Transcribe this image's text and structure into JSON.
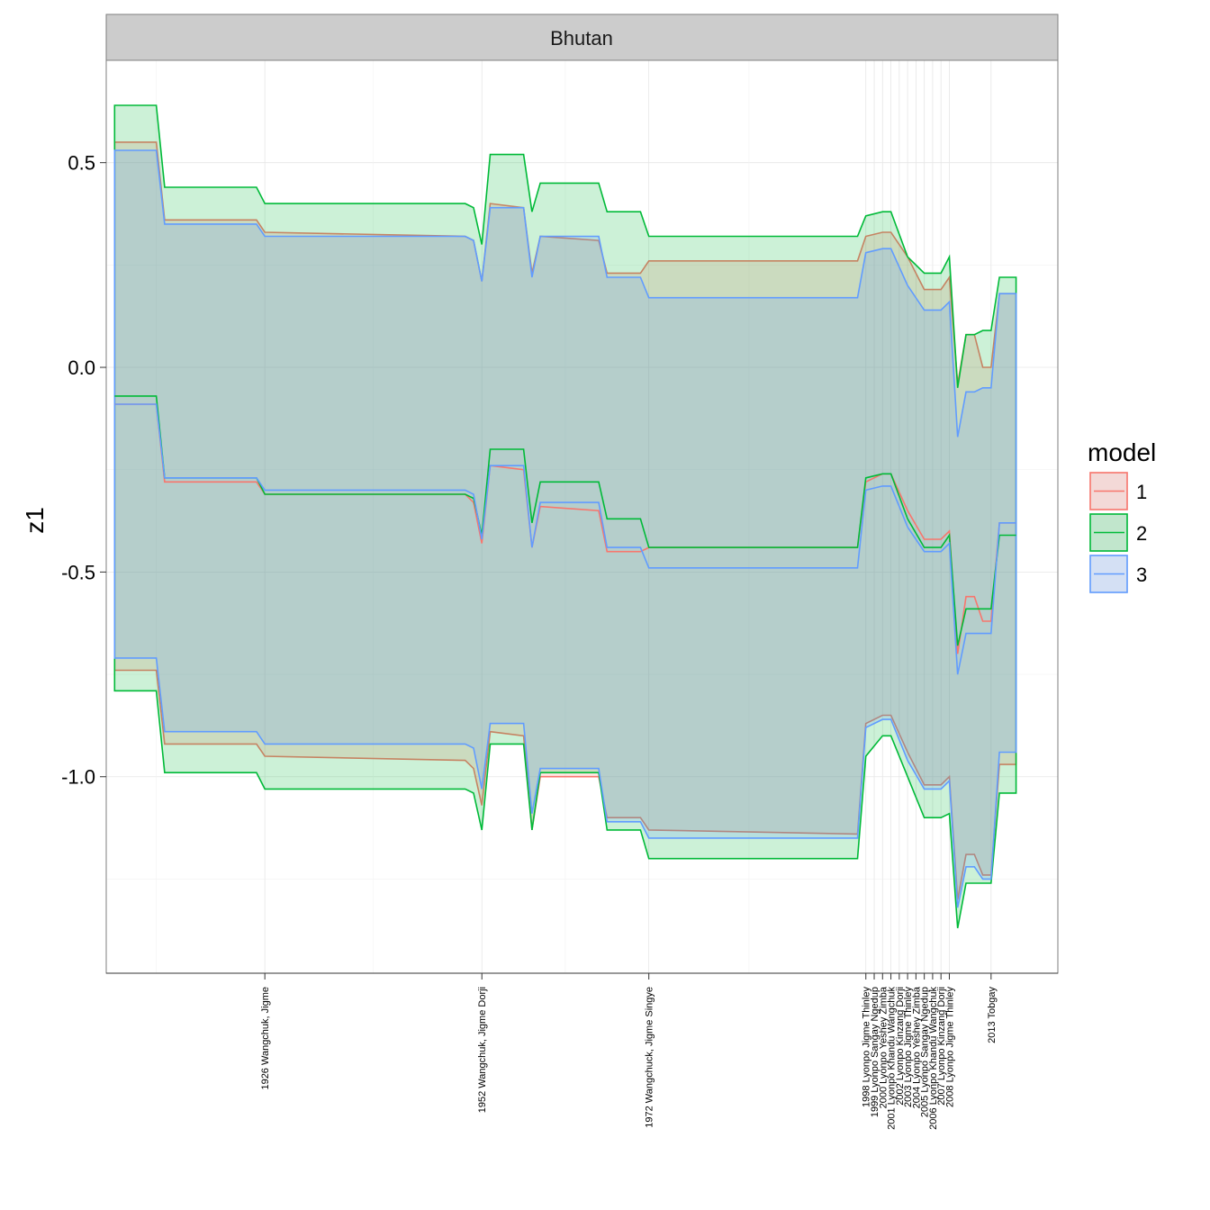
{
  "chart_data": {
    "type": "area",
    "facet_title": "Bhutan",
    "ylabel": "z1",
    "xlabel": "",
    "ylim": [
      -1.48,
      0.75
    ],
    "xlim": [
      1907,
      2021
    ],
    "yticks": [
      0.5,
      0.0,
      -0.5,
      -1.0
    ],
    "ytick_labels": [
      "0.5",
      "0.0",
      "-0.5",
      "-1.0"
    ],
    "xticks": [
      {
        "x": 1926,
        "label": "1926 Wangchuk, Jigme"
      },
      {
        "x": 1952,
        "label": "1952 Wangchuk, Jigme Dorji"
      },
      {
        "x": 1972,
        "label": "1972 Wangchuck, Jigme Singye"
      },
      {
        "x": 1998,
        "label": "1998 Lyonpo Jigme Thinley"
      },
      {
        "x": 1999,
        "label": "1999 Lyonpo Sangay Ngedup"
      },
      {
        "x": 2000,
        "label": "2000 Lyonpo Yeshey Zimba"
      },
      {
        "x": 2001,
        "label": "2001 Lyonpo Khandu Wangchuk"
      },
      {
        "x": 2002,
        "label": "2002 Lyonpo Kinzang Dorji"
      },
      {
        "x": 2003,
        "label": "2003 Lyonpo Jigme Thinley"
      },
      {
        "x": 2004,
        "label": "2004 Lyonpo Yeshey Zimba"
      },
      {
        "x": 2005,
        "label": "2005 Lyonpo Sangay Ngedup"
      },
      {
        "x": 2006,
        "label": "2006 Lyonpo Khandu Wangchuk"
      },
      {
        "x": 2007,
        "label": "2007 Lyonpo Kinzang Dorji"
      },
      {
        "x": 2008,
        "label": "2008 Lyonpo Jigme Thinley"
      },
      {
        "x": 2013,
        "label": "2013 Tobgay"
      }
    ],
    "legend": {
      "title": "model",
      "position": "right",
      "entries": [
        "1",
        "2",
        "3"
      ]
    },
    "grid": true,
    "series": [
      {
        "name": "1",
        "color": "#F8766D",
        "points": [
          {
            "x": 1908,
            "mean": -0.09,
            "lower": -0.74,
            "upper": 0.55
          },
          {
            "x": 1913,
            "mean": -0.09,
            "lower": -0.74,
            "upper": 0.55
          },
          {
            "x": 1914,
            "mean": -0.28,
            "lower": -0.92,
            "upper": 0.36
          },
          {
            "x": 1925,
            "mean": -0.28,
            "lower": -0.92,
            "upper": 0.36
          },
          {
            "x": 1926,
            "mean": -0.31,
            "lower": -0.95,
            "upper": 0.33
          },
          {
            "x": 1950,
            "mean": -0.31,
            "lower": -0.96,
            "upper": 0.32
          },
          {
            "x": 1951,
            "mean": -0.33,
            "lower": -0.98,
            "upper": 0.31
          },
          {
            "x": 1952,
            "mean": -0.43,
            "lower": -1.07,
            "upper": 0.21
          },
          {
            "x": 1953,
            "mean": -0.24,
            "lower": -0.89,
            "upper": 0.4
          },
          {
            "x": 1957,
            "mean": -0.25,
            "lower": -0.9,
            "upper": 0.39
          },
          {
            "x": 1958,
            "mean": -0.44,
            "lower": -1.13,
            "upper": 0.23
          },
          {
            "x": 1959,
            "mean": -0.34,
            "lower": -1.0,
            "upper": 0.32
          },
          {
            "x": 1966,
            "mean": -0.35,
            "lower": -1.0,
            "upper": 0.31
          },
          {
            "x": 1967,
            "mean": -0.45,
            "lower": -1.1,
            "upper": 0.23
          },
          {
            "x": 1971,
            "mean": -0.45,
            "lower": -1.1,
            "upper": 0.23
          },
          {
            "x": 1972,
            "mean": -0.44,
            "lower": -1.13,
            "upper": 0.26
          },
          {
            "x": 1997,
            "mean": -0.44,
            "lower": -1.14,
            "upper": 0.26
          },
          {
            "x": 1998,
            "mean": -0.28,
            "lower": -0.87,
            "upper": 0.32
          },
          {
            "x": 2000,
            "mean": -0.26,
            "lower": -0.85,
            "upper": 0.33
          },
          {
            "x": 2001,
            "mean": -0.26,
            "lower": -0.85,
            "upper": 0.33
          },
          {
            "x": 2003,
            "mean": -0.35,
            "lower": -0.94,
            "upper": 0.27
          },
          {
            "x": 2005,
            "mean": -0.42,
            "lower": -1.02,
            "upper": 0.19
          },
          {
            "x": 2007,
            "mean": -0.42,
            "lower": -1.02,
            "upper": 0.19
          },
          {
            "x": 2008,
            "mean": -0.4,
            "lower": -1.0,
            "upper": 0.22
          },
          {
            "x": 2009,
            "mean": -0.7,
            "lower": -1.3,
            "upper": -0.04
          },
          {
            "x": 2010,
            "mean": -0.56,
            "lower": -1.19,
            "upper": 0.08
          },
          {
            "x": 2011,
            "mean": -0.56,
            "lower": -1.19,
            "upper": 0.08
          },
          {
            "x": 2012,
            "mean": -0.62,
            "lower": -1.24,
            "upper": 0.0
          },
          {
            "x": 2013,
            "mean": -0.62,
            "lower": -1.24,
            "upper": 0.0
          },
          {
            "x": 2014,
            "mean": -0.38,
            "lower": -0.97,
            "upper": 0.18
          },
          {
            "x": 2016,
            "mean": -0.38,
            "lower": -0.97,
            "upper": 0.18
          }
        ]
      },
      {
        "name": "2",
        "color": "#00BA38",
        "points": [
          {
            "x": 1908,
            "mean": -0.07,
            "lower": -0.79,
            "upper": 0.64
          },
          {
            "x": 1913,
            "mean": -0.07,
            "lower": -0.79,
            "upper": 0.64
          },
          {
            "x": 1914,
            "mean": -0.27,
            "lower": -0.99,
            "upper": 0.44
          },
          {
            "x": 1925,
            "mean": -0.27,
            "lower": -0.99,
            "upper": 0.44
          },
          {
            "x": 1926,
            "mean": -0.31,
            "lower": -1.03,
            "upper": 0.4
          },
          {
            "x": 1950,
            "mean": -0.31,
            "lower": -1.03,
            "upper": 0.4
          },
          {
            "x": 1951,
            "mean": -0.32,
            "lower": -1.04,
            "upper": 0.39
          },
          {
            "x": 1952,
            "mean": -0.41,
            "lower": -1.13,
            "upper": 0.3
          },
          {
            "x": 1953,
            "mean": -0.2,
            "lower": -0.92,
            "upper": 0.52
          },
          {
            "x": 1957,
            "mean": -0.2,
            "lower": -0.92,
            "upper": 0.52
          },
          {
            "x": 1958,
            "mean": -0.38,
            "lower": -1.13,
            "upper": 0.38
          },
          {
            "x": 1959,
            "mean": -0.28,
            "lower": -0.99,
            "upper": 0.45
          },
          {
            "x": 1966,
            "mean": -0.28,
            "lower": -0.99,
            "upper": 0.45
          },
          {
            "x": 1967,
            "mean": -0.37,
            "lower": -1.13,
            "upper": 0.38
          },
          {
            "x": 1971,
            "mean": -0.37,
            "lower": -1.13,
            "upper": 0.38
          },
          {
            "x": 1972,
            "mean": -0.44,
            "lower": -1.2,
            "upper": 0.32
          },
          {
            "x": 1997,
            "mean": -0.44,
            "lower": -1.2,
            "upper": 0.32
          },
          {
            "x": 1998,
            "mean": -0.27,
            "lower": -0.95,
            "upper": 0.37
          },
          {
            "x": 2000,
            "mean": -0.26,
            "lower": -0.9,
            "upper": 0.38
          },
          {
            "x": 2001,
            "mean": -0.26,
            "lower": -0.9,
            "upper": 0.38
          },
          {
            "x": 2003,
            "mean": -0.37,
            "lower": -1.0,
            "upper": 0.27
          },
          {
            "x": 2005,
            "mean": -0.44,
            "lower": -1.1,
            "upper": 0.23
          },
          {
            "x": 2007,
            "mean": -0.44,
            "lower": -1.1,
            "upper": 0.23
          },
          {
            "x": 2008,
            "mean": -0.41,
            "lower": -1.09,
            "upper": 0.27
          },
          {
            "x": 2009,
            "mean": -0.68,
            "lower": -1.37,
            "upper": -0.05
          },
          {
            "x": 2010,
            "mean": -0.59,
            "lower": -1.26,
            "upper": 0.08
          },
          {
            "x": 2011,
            "mean": -0.59,
            "lower": -1.26,
            "upper": 0.08
          },
          {
            "x": 2012,
            "mean": -0.59,
            "lower": -1.26,
            "upper": 0.09
          },
          {
            "x": 2013,
            "mean": -0.59,
            "lower": -1.26,
            "upper": 0.09
          },
          {
            "x": 2014,
            "mean": -0.41,
            "lower": -1.04,
            "upper": 0.22
          },
          {
            "x": 2016,
            "mean": -0.41,
            "lower": -1.04,
            "upper": 0.22
          }
        ]
      },
      {
        "name": "3",
        "color": "#619CFF",
        "points": [
          {
            "x": 1908,
            "mean": -0.09,
            "lower": -0.71,
            "upper": 0.53
          },
          {
            "x": 1913,
            "mean": -0.09,
            "lower": -0.71,
            "upper": 0.53
          },
          {
            "x": 1914,
            "mean": -0.27,
            "lower": -0.89,
            "upper": 0.35
          },
          {
            "x": 1925,
            "mean": -0.27,
            "lower": -0.89,
            "upper": 0.35
          },
          {
            "x": 1926,
            "mean": -0.3,
            "lower": -0.92,
            "upper": 0.32
          },
          {
            "x": 1950,
            "mean": -0.3,
            "lower": -0.92,
            "upper": 0.32
          },
          {
            "x": 1951,
            "mean": -0.31,
            "lower": -0.93,
            "upper": 0.31
          },
          {
            "x": 1952,
            "mean": -0.42,
            "lower": -1.03,
            "upper": 0.21
          },
          {
            "x": 1953,
            "mean": -0.24,
            "lower": -0.87,
            "upper": 0.39
          },
          {
            "x": 1957,
            "mean": -0.24,
            "lower": -0.87,
            "upper": 0.39
          },
          {
            "x": 1958,
            "mean": -0.44,
            "lower": -1.09,
            "upper": 0.22
          },
          {
            "x": 1959,
            "mean": -0.33,
            "lower": -0.98,
            "upper": 0.32
          },
          {
            "x": 1966,
            "mean": -0.33,
            "lower": -0.98,
            "upper": 0.32
          },
          {
            "x": 1967,
            "mean": -0.44,
            "lower": -1.11,
            "upper": 0.22
          },
          {
            "x": 1971,
            "mean": -0.44,
            "lower": -1.11,
            "upper": 0.22
          },
          {
            "x": 1972,
            "mean": -0.49,
            "lower": -1.15,
            "upper": 0.17
          },
          {
            "x": 1997,
            "mean": -0.49,
            "lower": -1.15,
            "upper": 0.17
          },
          {
            "x": 1998,
            "mean": -0.3,
            "lower": -0.88,
            "upper": 0.28
          },
          {
            "x": 2000,
            "mean": -0.29,
            "lower": -0.86,
            "upper": 0.29
          },
          {
            "x": 2001,
            "mean": -0.29,
            "lower": -0.86,
            "upper": 0.29
          },
          {
            "x": 2003,
            "mean": -0.39,
            "lower": -0.96,
            "upper": 0.2
          },
          {
            "x": 2005,
            "mean": -0.45,
            "lower": -1.03,
            "upper": 0.14
          },
          {
            "x": 2007,
            "mean": -0.45,
            "lower": -1.03,
            "upper": 0.14
          },
          {
            "x": 2008,
            "mean": -0.43,
            "lower": -1.01,
            "upper": 0.16
          },
          {
            "x": 2009,
            "mean": -0.75,
            "lower": -1.32,
            "upper": -0.17
          },
          {
            "x": 2010,
            "mean": -0.65,
            "lower": -1.22,
            "upper": -0.06
          },
          {
            "x": 2011,
            "mean": -0.65,
            "lower": -1.22,
            "upper": -0.06
          },
          {
            "x": 2012,
            "mean": -0.65,
            "lower": -1.25,
            "upper": -0.05
          },
          {
            "x": 2013,
            "mean": -0.65,
            "lower": -1.25,
            "upper": -0.05
          },
          {
            "x": 2014,
            "mean": -0.38,
            "lower": -0.94,
            "upper": 0.18
          },
          {
            "x": 2016,
            "mean": -0.38,
            "lower": -0.94,
            "upper": 0.18
          }
        ]
      }
    ]
  }
}
